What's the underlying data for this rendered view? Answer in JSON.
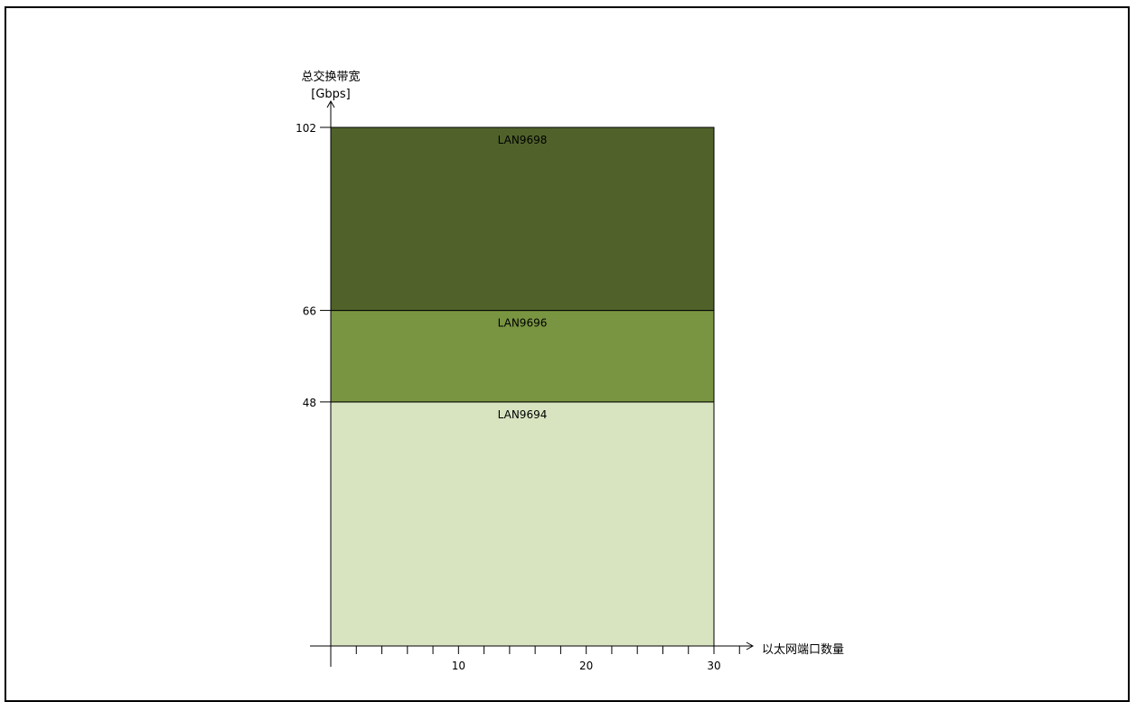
{
  "chart_data": {
    "type": "area",
    "ylabel": "总交换带宽",
    "yunit": "[Gbps]",
    "xlabel": "以太网端口数量",
    "x_ticks": [
      10,
      20,
      30
    ],
    "y_ticks": [
      48,
      66,
      102
    ],
    "xlim": [
      0,
      30
    ],
    "series": [
      {
        "name": "LAN9694",
        "y_from": 0,
        "y_to": 48,
        "x_from": 0,
        "x_to": 30,
        "color": "#d8e4c0"
      },
      {
        "name": "LAN9696",
        "y_from": 48,
        "y_to": 66,
        "x_from": 0,
        "x_to": 30,
        "color": "#799541"
      },
      {
        "name": "LAN9698",
        "y_from": 66,
        "y_to": 102,
        "x_from": 0,
        "x_to": 30,
        "color": "#50622a"
      }
    ],
    "grid": false,
    "legend": "none"
  }
}
